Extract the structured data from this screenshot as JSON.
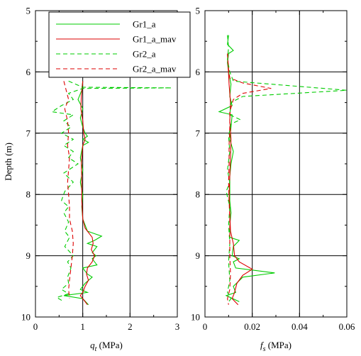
{
  "chart_data": [
    {
      "type": "line",
      "xlabel_symbol": "q",
      "xlabel_subscript": "t",
      "xlabel_unit": " (MPa)",
      "ylabel": "Depth (m)",
      "xlim": [
        0,
        3
      ],
      "ylim": [
        10,
        5
      ],
      "y_inverted": true,
      "x_ticks": [
        0,
        1,
        2,
        3
      ],
      "y_ticks": [
        5,
        6,
        7,
        8,
        9,
        10
      ],
      "grid": true,
      "legend": {
        "position": "top-left",
        "entries": [
          {
            "label": "Gr1_a",
            "color": "#00cc00",
            "dash": "solid"
          },
          {
            "label": "Gr1_a_mav",
            "color": "#dd0000",
            "dash": "solid"
          },
          {
            "label": "Gr2_a",
            "color": "#00cc00",
            "dash": "dashed"
          },
          {
            "label": "Gr2_a_mav",
            "color": "#dd0000",
            "dash": "dashed"
          }
        ]
      },
      "series": [
        {
          "name": "Gr1_a",
          "color": "#00cc00",
          "dash": "solid",
          "points": [
            [
              1.0,
              6.15
            ],
            [
              0.98,
              6.3
            ],
            [
              0.9,
              6.45
            ],
            [
              1.0,
              6.6
            ],
            [
              0.95,
              6.75
            ],
            [
              1.0,
              6.9
            ],
            [
              1.05,
              7.0
            ],
            [
              1.1,
              7.05
            ],
            [
              1.0,
              7.1
            ],
            [
              1.12,
              7.15
            ],
            [
              1.0,
              7.2
            ],
            [
              0.95,
              7.4
            ],
            [
              1.0,
              7.6
            ],
            [
              0.95,
              7.8
            ],
            [
              1.0,
              8.0
            ],
            [
              0.98,
              8.2
            ],
            [
              1.0,
              8.4
            ],
            [
              1.05,
              8.5
            ],
            [
              1.1,
              8.6
            ],
            [
              1.4,
              8.68
            ],
            [
              1.25,
              8.75
            ],
            [
              1.1,
              8.8
            ],
            [
              1.3,
              8.85
            ],
            [
              1.2,
              8.95
            ],
            [
              1.28,
              9.0
            ],
            [
              1.2,
              9.05
            ],
            [
              1.3,
              9.15
            ],
            [
              1.0,
              9.2
            ],
            [
              1.1,
              9.3
            ],
            [
              1.2,
              9.35
            ],
            [
              1.05,
              9.45
            ],
            [
              0.95,
              9.55
            ],
            [
              1.1,
              9.6
            ],
            [
              0.6,
              9.65
            ],
            [
              1.0,
              9.7
            ],
            [
              1.12,
              9.8
            ]
          ]
        },
        {
          "name": "Gr1_a_mav",
          "color": "#dd0000",
          "dash": "solid",
          "points": [
            [
              1.0,
              6.15
            ],
            [
              0.97,
              6.4
            ],
            [
              0.96,
              6.6
            ],
            [
              1.0,
              6.8
            ],
            [
              1.02,
              7.0
            ],
            [
              1.05,
              7.1
            ],
            [
              1.0,
              7.2
            ],
            [
              0.97,
              7.5
            ],
            [
              0.98,
              7.8
            ],
            [
              0.98,
              8.1
            ],
            [
              1.0,
              8.4
            ],
            [
              1.05,
              8.55
            ],
            [
              1.2,
              8.7
            ],
            [
              1.22,
              8.8
            ],
            [
              1.18,
              8.9
            ],
            [
              1.25,
              9.0
            ],
            [
              1.2,
              9.1
            ],
            [
              1.1,
              9.2
            ],
            [
              1.08,
              9.3
            ],
            [
              1.12,
              9.4
            ],
            [
              1.05,
              9.5
            ],
            [
              1.0,
              9.6
            ],
            [
              0.95,
              9.65
            ],
            [
              1.05,
              9.75
            ],
            [
              1.1,
              9.8
            ]
          ]
        },
        {
          "name": "Gr2_a",
          "color": "#00cc00",
          "dash": "dashed",
          "points": [
            [
              0.7,
              6.15
            ],
            [
              1.0,
              6.25
            ],
            [
              2.88,
              6.26
            ],
            [
              1.0,
              6.27
            ],
            [
              0.7,
              6.35
            ],
            [
              0.8,
              6.45
            ],
            [
              0.55,
              6.55
            ],
            [
              0.35,
              6.65
            ],
            [
              0.8,
              6.7
            ],
            [
              0.6,
              6.8
            ],
            [
              0.75,
              6.9
            ],
            [
              0.55,
              7.0
            ],
            [
              0.8,
              7.1
            ],
            [
              0.6,
              7.2
            ],
            [
              0.8,
              7.3
            ],
            [
              0.7,
              7.4
            ],
            [
              0.9,
              7.5
            ],
            [
              0.6,
              7.65
            ],
            [
              0.8,
              7.8
            ],
            [
              0.62,
              7.95
            ],
            [
              0.55,
              8.1
            ],
            [
              0.7,
              8.2
            ],
            [
              0.6,
              8.3
            ],
            [
              0.7,
              8.45
            ],
            [
              0.62,
              8.6
            ],
            [
              0.72,
              8.7
            ],
            [
              0.62,
              8.85
            ],
            [
              0.8,
              9.0
            ],
            [
              0.68,
              9.1
            ],
            [
              0.75,
              9.2
            ],
            [
              0.68,
              9.35
            ],
            [
              0.7,
              9.45
            ],
            [
              0.55,
              9.55
            ],
            [
              0.7,
              9.62
            ],
            [
              0.45,
              9.68
            ],
            [
              0.6,
              9.75
            ]
          ]
        },
        {
          "name": "Gr2_a_mav",
          "color": "#dd0000",
          "dash": "dashed",
          "points": [
            [
              0.6,
              6.15
            ],
            [
              0.65,
              6.3
            ],
            [
              0.7,
              6.45
            ],
            [
              0.62,
              6.6
            ],
            [
              0.68,
              6.8
            ],
            [
              0.7,
              7.0
            ],
            [
              0.68,
              7.2
            ],
            [
              0.72,
              7.4
            ],
            [
              0.7,
              7.6
            ],
            [
              0.68,
              7.8
            ],
            [
              0.7,
              8.0
            ],
            [
              0.72,
              8.2
            ],
            [
              0.72,
              8.4
            ],
            [
              0.78,
              8.6
            ],
            [
              0.8,
              8.8
            ],
            [
              0.78,
              9.0
            ],
            [
              0.75,
              9.2
            ],
            [
              0.72,
              9.4
            ],
            [
              0.7,
              9.55
            ],
            [
              0.72,
              9.7
            ]
          ]
        }
      ]
    },
    {
      "type": "line",
      "xlabel_symbol": "f",
      "xlabel_subscript": "s",
      "xlabel_unit": " (MPa)",
      "xlim": [
        0,
        0.06
      ],
      "ylim": [
        10,
        5
      ],
      "y_inverted": true,
      "x_ticks": [
        0,
        0.02,
        0.04,
        0.06
      ],
      "y_ticks": [
        5,
        6,
        7,
        8,
        9,
        10
      ],
      "grid": true,
      "series": [
        {
          "name": "Gr1_a",
          "color": "#00cc00",
          "dash": "solid",
          "points": [
            [
              0.01,
              5.4
            ],
            [
              0.0095,
              5.55
            ],
            [
              0.012,
              5.65
            ],
            [
              0.01,
              5.7
            ],
            [
              0.0095,
              5.85
            ],
            [
              0.01,
              6.0
            ],
            [
              0.011,
              6.2
            ],
            [
              0.0105,
              6.4
            ],
            [
              0.0115,
              6.55
            ],
            [
              0.006,
              6.65
            ],
            [
              0.0115,
              6.7
            ],
            [
              0.011,
              6.9
            ],
            [
              0.0105,
              7.1
            ],
            [
              0.012,
              7.3
            ],
            [
              0.011,
              7.5
            ],
            [
              0.0105,
              7.7
            ],
            [
              0.0105,
              7.9
            ],
            [
              0.0105,
              8.1
            ],
            [
              0.011,
              8.3
            ],
            [
              0.0105,
              8.5
            ],
            [
              0.0105,
              8.7
            ],
            [
              0.0145,
              8.75
            ],
            [
              0.012,
              8.85
            ],
            [
              0.0115,
              9.0
            ],
            [
              0.0145,
              9.05
            ],
            [
              0.012,
              9.1
            ],
            [
              0.013,
              9.2
            ],
            [
              0.0295,
              9.28
            ],
            [
              0.016,
              9.35
            ],
            [
              0.012,
              9.5
            ],
            [
              0.013,
              9.6
            ],
            [
              0.009,
              9.65
            ],
            [
              0.0145,
              9.75
            ]
          ]
        },
        {
          "name": "Gr1_a_mav",
          "color": "#dd0000",
          "dash": "solid",
          "points": [
            [
              0.0095,
              5.7
            ],
            [
              0.0098,
              5.9
            ],
            [
              0.0102,
              6.2
            ],
            [
              0.0108,
              6.5
            ],
            [
              0.0105,
              6.8
            ],
            [
              0.011,
              7.1
            ],
            [
              0.0108,
              7.4
            ],
            [
              0.0105,
              7.7
            ],
            [
              0.0102,
              8.0
            ],
            [
              0.0105,
              8.3
            ],
            [
              0.0108,
              8.6
            ],
            [
              0.012,
              8.8
            ],
            [
              0.0125,
              9.0
            ],
            [
              0.0145,
              9.1
            ],
            [
              0.02,
              9.22
            ],
            [
              0.016,
              9.32
            ],
            [
              0.0135,
              9.45
            ],
            [
              0.0125,
              9.6
            ],
            [
              0.0115,
              9.7
            ],
            [
              0.014,
              9.8
            ]
          ]
        },
        {
          "name": "Gr2_a",
          "color": "#00cc00",
          "dash": "dashed",
          "points": [
            [
              0.0095,
              5.4
            ],
            [
              0.01,
              5.6
            ],
            [
              0.0095,
              5.8
            ],
            [
              0.0105,
              6.0
            ],
            [
              0.012,
              6.15
            ],
            [
              0.06,
              6.3
            ],
            [
              0.016,
              6.4
            ],
            [
              0.011,
              6.5
            ],
            [
              0.0105,
              6.7
            ],
            [
              0.015,
              6.78
            ],
            [
              0.011,
              6.85
            ],
            [
              0.01,
              7.05
            ],
            [
              0.0105,
              7.3
            ],
            [
              0.0095,
              7.6
            ],
            [
              0.0105,
              7.8
            ],
            [
              0.009,
              7.95
            ],
            [
              0.0105,
              8.2
            ],
            [
              0.01,
              8.5
            ],
            [
              0.0105,
              8.8
            ],
            [
              0.01,
              9.1
            ],
            [
              0.0105,
              9.4
            ],
            [
              0.0095,
              9.6
            ],
            [
              0.011,
              9.7
            ],
            [
              0.0095,
              9.78
            ]
          ]
        },
        {
          "name": "Gr2_a_mav",
          "color": "#dd0000",
          "dash": "dashed",
          "points": [
            [
              0.0095,
              5.7
            ],
            [
              0.01,
              5.95
            ],
            [
              0.0105,
              6.1
            ],
            [
              0.016,
              6.18
            ],
            [
              0.028,
              6.27
            ],
            [
              0.016,
              6.35
            ],
            [
              0.012,
              6.45
            ],
            [
              0.0105,
              6.65
            ],
            [
              0.0105,
              6.9
            ],
            [
              0.0102,
              7.2
            ],
            [
              0.0102,
              7.5
            ],
            [
              0.01,
              7.8
            ],
            [
              0.0102,
              8.1
            ],
            [
              0.0105,
              8.4
            ],
            [
              0.0105,
              8.7
            ],
            [
              0.0105,
              9.0
            ],
            [
              0.0108,
              9.3
            ],
            [
              0.0105,
              9.55
            ],
            [
              0.0095,
              9.7
            ],
            [
              0.01,
              9.8
            ]
          ]
        }
      ]
    }
  ]
}
